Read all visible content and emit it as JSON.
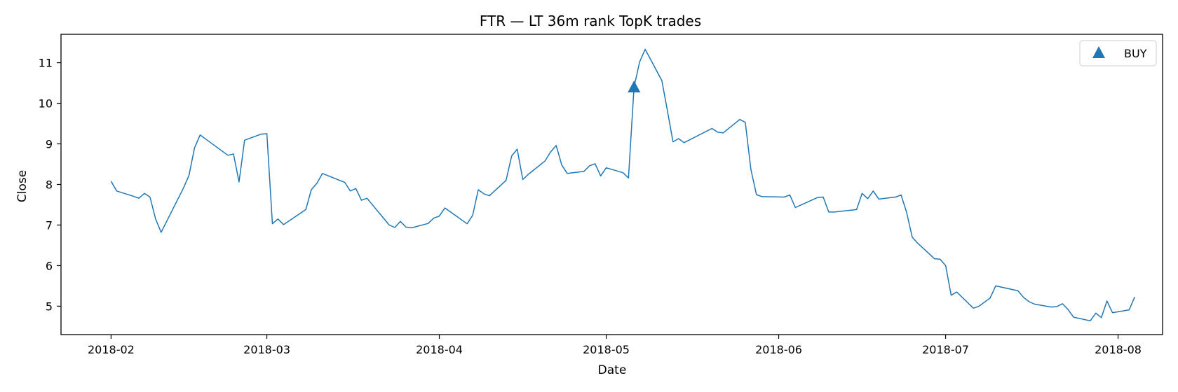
{
  "chart_data": {
    "type": "line",
    "title": "FTR — LT 36m rank TopK trades",
    "xlabel": "Date",
    "ylabel": "Close",
    "xlim": [
      "2018-01-23",
      "2018-08-09"
    ],
    "ylim": [
      4.3,
      11.7
    ],
    "x_ticks": [
      "2018-02",
      "2018-03",
      "2018-04",
      "2018-05",
      "2018-06",
      "2018-07",
      "2018-08"
    ],
    "x_tick_dates": [
      "2018-02-01",
      "2018-03-01",
      "2018-04-01",
      "2018-05-01",
      "2018-06-01",
      "2018-07-01",
      "2018-08-01"
    ],
    "y_ticks": [
      5,
      6,
      7,
      8,
      9,
      10,
      11
    ],
    "grid": false,
    "legend_position": "top-right",
    "series": [
      {
        "name": "",
        "color": "#1f77b4",
        "points": [
          [
            "2018-02-01",
            8.08
          ],
          [
            "2018-02-02",
            7.84
          ],
          [
            "2018-02-05",
            7.71
          ],
          [
            "2018-02-06",
            7.66
          ],
          [
            "2018-02-07",
            7.78
          ],
          [
            "2018-02-08",
            7.69
          ],
          [
            "2018-02-09",
            7.15
          ],
          [
            "2018-02-10",
            6.82
          ],
          [
            "2018-02-14",
            7.91
          ],
          [
            "2018-02-15",
            8.22
          ],
          [
            "2018-02-16",
            8.9
          ],
          [
            "2018-02-17",
            9.22
          ],
          [
            "2018-02-22",
            8.72
          ],
          [
            "2018-02-23",
            8.75
          ],
          [
            "2018-02-24",
            8.06
          ],
          [
            "2018-02-25",
            9.09
          ],
          [
            "2018-02-28",
            9.24
          ],
          [
            "2018-03-01",
            9.25
          ],
          [
            "2018-03-02",
            7.03
          ],
          [
            "2018-03-03",
            7.15
          ],
          [
            "2018-03-04",
            7.01
          ],
          [
            "2018-03-08",
            7.38
          ],
          [
            "2018-03-09",
            7.87
          ],
          [
            "2018-03-10",
            8.03
          ],
          [
            "2018-03-11",
            8.27
          ],
          [
            "2018-03-15",
            8.05
          ],
          [
            "2018-03-16",
            7.84
          ],
          [
            "2018-03-17",
            7.9
          ],
          [
            "2018-03-18",
            7.61
          ],
          [
            "2018-03-19",
            7.66
          ],
          [
            "2018-03-23",
            7.0
          ],
          [
            "2018-03-24",
            6.94
          ],
          [
            "2018-03-25",
            7.09
          ],
          [
            "2018-03-26",
            6.95
          ],
          [
            "2018-03-27",
            6.93
          ],
          [
            "2018-03-30",
            7.04
          ],
          [
            "2018-03-31",
            7.17
          ],
          [
            "2018-04-01",
            7.22
          ],
          [
            "2018-04-02",
            7.42
          ],
          [
            "2018-04-06",
            7.03
          ],
          [
            "2018-04-07",
            7.24
          ],
          [
            "2018-04-08",
            7.87
          ],
          [
            "2018-04-09",
            7.77
          ],
          [
            "2018-04-10",
            7.72
          ],
          [
            "2018-04-13",
            8.1
          ],
          [
            "2018-04-14",
            8.7
          ],
          [
            "2018-04-15",
            8.87
          ],
          [
            "2018-04-16",
            8.12
          ],
          [
            "2018-04-17",
            8.25
          ],
          [
            "2018-04-20",
            8.58
          ],
          [
            "2018-04-21",
            8.8
          ],
          [
            "2018-04-22",
            8.96
          ],
          [
            "2018-04-23",
            8.48
          ],
          [
            "2018-04-24",
            8.27
          ],
          [
            "2018-04-27",
            8.32
          ],
          [
            "2018-04-28",
            8.46
          ],
          [
            "2018-04-29",
            8.51
          ],
          [
            "2018-04-30",
            8.21
          ],
          [
            "2018-05-01",
            8.41
          ],
          [
            "2018-05-04",
            8.29
          ],
          [
            "2018-05-05",
            8.16
          ],
          [
            "2018-05-06",
            10.39
          ],
          [
            "2018-05-07",
            11.02
          ],
          [
            "2018-05-08",
            11.33
          ],
          [
            "2018-05-11",
            10.56
          ],
          [
            "2018-05-12",
            9.82
          ],
          [
            "2018-05-13",
            9.05
          ],
          [
            "2018-05-14",
            9.13
          ],
          [
            "2018-05-15",
            9.03
          ],
          [
            "2018-05-20",
            9.38
          ],
          [
            "2018-05-21",
            9.29
          ],
          [
            "2018-05-22",
            9.27
          ],
          [
            "2018-05-25",
            9.6
          ],
          [
            "2018-05-26",
            9.53
          ],
          [
            "2018-05-27",
            8.37
          ],
          [
            "2018-05-28",
            7.75
          ],
          [
            "2018-05-29",
            7.7
          ],
          [
            "2018-06-02",
            7.69
          ],
          [
            "2018-06-03",
            7.74
          ],
          [
            "2018-06-04",
            7.43
          ],
          [
            "2018-06-08",
            7.68
          ],
          [
            "2018-06-09",
            7.69
          ],
          [
            "2018-06-10",
            7.32
          ],
          [
            "2018-06-11",
            7.32
          ],
          [
            "2018-06-15",
            7.38
          ],
          [
            "2018-06-16",
            7.78
          ],
          [
            "2018-06-17",
            7.65
          ],
          [
            "2018-06-18",
            7.84
          ],
          [
            "2018-06-19",
            7.64
          ],
          [
            "2018-06-22",
            7.69
          ],
          [
            "2018-06-23",
            7.74
          ],
          [
            "2018-06-24",
            7.31
          ],
          [
            "2018-06-25",
            6.7
          ],
          [
            "2018-06-26",
            6.55
          ],
          [
            "2018-06-29",
            6.17
          ],
          [
            "2018-06-30",
            6.16
          ],
          [
            "2018-07-01",
            6.0
          ],
          [
            "2018-07-02",
            5.27
          ],
          [
            "2018-07-03",
            5.35
          ],
          [
            "2018-07-06",
            4.95
          ],
          [
            "2018-07-07",
            5.0
          ],
          [
            "2018-07-09",
            5.2
          ],
          [
            "2018-07-10",
            5.5
          ],
          [
            "2018-07-14",
            5.38
          ],
          [
            "2018-07-15",
            5.22
          ],
          [
            "2018-07-16",
            5.11
          ],
          [
            "2018-07-17",
            5.05
          ],
          [
            "2018-07-20",
            4.98
          ],
          [
            "2018-07-21",
            4.99
          ],
          [
            "2018-07-22",
            5.06
          ],
          [
            "2018-07-23",
            4.92
          ],
          [
            "2018-07-24",
            4.73
          ],
          [
            "2018-07-27",
            4.64
          ],
          [
            "2018-07-28",
            4.83
          ],
          [
            "2018-07-29",
            4.72
          ],
          [
            "2018-07-30",
            5.13
          ],
          [
            "2018-07-31",
            4.84
          ],
          [
            "2018-08-03",
            4.91
          ],
          [
            "2018-08-04",
            5.23
          ]
        ]
      }
    ],
    "markers": {
      "name": "BUY",
      "symbol": "triangle-up",
      "color": "#1f77b4",
      "points": [
        [
          "2018-05-06",
          10.39
        ]
      ]
    }
  }
}
